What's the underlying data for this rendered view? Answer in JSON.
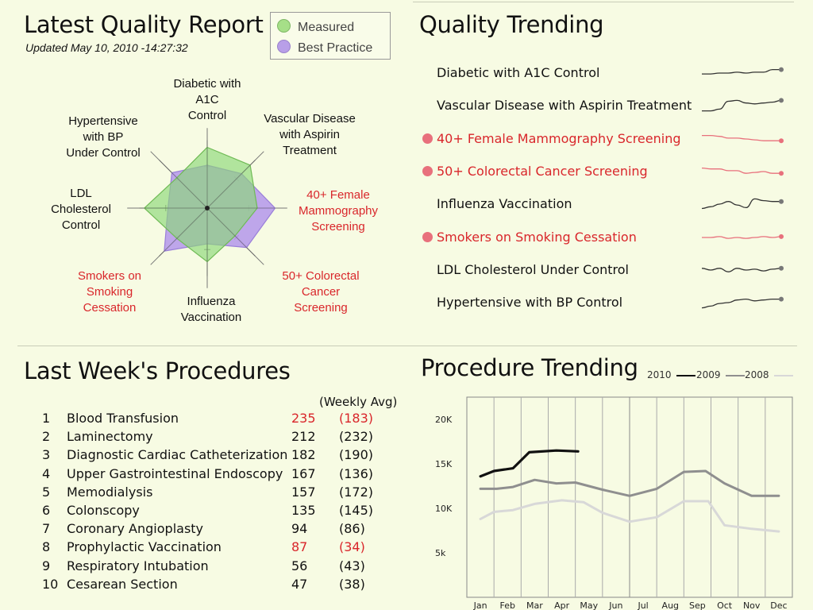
{
  "report": {
    "title": "Latest Quality Report",
    "updated": "Updated May 10, 2010 -14:27:32",
    "legend": [
      {
        "label": "Measured",
        "color": "#a6df88"
      },
      {
        "label": "Best Practice",
        "color": "#b89fe8"
      }
    ]
  },
  "radar": {
    "axes": [
      {
        "lines": [
          "Diabetic with",
          "A1C",
          "Control"
        ],
        "highlight": false
      },
      {
        "lines": [
          "Vascular Disease",
          "with Aspirin",
          "Treatment"
        ],
        "highlight": false
      },
      {
        "lines": [
          "40+ Female",
          "Mammography",
          "Screening"
        ],
        "highlight": true
      },
      {
        "lines": [
          "50+ Colorectal",
          "Cancer",
          "Screening"
        ],
        "highlight": true
      },
      {
        "lines": [
          "Influenza",
          "Vaccination"
        ],
        "highlight": false
      },
      {
        "lines": [
          "Smokers on",
          "Smoking",
          "Cessation"
        ],
        "highlight": true
      },
      {
        "lines": [
          "LDL",
          "Cholesterol",
          "Control"
        ],
        "highlight": false
      },
      {
        "lines": [
          "Hypertensive",
          "with BP",
          "Under Control"
        ],
        "highlight": false
      }
    ]
  },
  "chart_data": [
    {
      "type": "radar",
      "axes": [
        "Diabetic with A1C Control",
        "Vascular Disease with Aspirin Treatment",
        "40+ Female Mammography Screening",
        "50+ Colorectal Cancer Screening",
        "Influenza Vaccination",
        "Smokers on Smoking Cessation",
        "LDL Cholesterol Control",
        "Hypertensive with BP Under Control"
      ],
      "range": [
        0,
        1
      ],
      "series": [
        {
          "name": "Measured",
          "color": "#a6df88",
          "values": [
            0.85,
            0.85,
            0.7,
            0.55,
            0.75,
            0.6,
            0.88,
            0.6
          ]
        },
        {
          "name": "Best Practice",
          "color": "#b89fe8",
          "values": [
            0.6,
            0.68,
            0.95,
            0.78,
            0.5,
            0.85,
            0.55,
            0.7
          ]
        }
      ]
    },
    {
      "type": "line",
      "title": "Procedure Trending",
      "categories": [
        "Jan",
        "Feb",
        "Mar",
        "Apr",
        "May",
        "Jun",
        "Jul",
        "Aug",
        "Sep",
        "Oct",
        "Nov",
        "Dec"
      ],
      "yticks": [
        "20K",
        "15K",
        "10K",
        "5k"
      ],
      "ytick_values": [
        20000,
        15000,
        10000,
        5000
      ],
      "ylim": [
        0,
        22500
      ],
      "grid": true,
      "legend_position": "top-right",
      "series": [
        {
          "name": "2010",
          "color": "#111111",
          "x": [
            0,
            0.5,
            1.2,
            1.8,
            2.8,
            3.6
          ],
          "values": [
            13600,
            14200,
            14500,
            16300,
            16500,
            16400
          ]
        },
        {
          "name": "2009",
          "color": "#8f8f8f",
          "x": [
            0,
            0.6,
            1.2,
            2,
            2.8,
            3.5,
            4.5,
            5.5,
            6.5,
            7.5,
            8.3,
            9,
            10,
            11
          ],
          "values": [
            12200,
            12200,
            12400,
            13200,
            12800,
            12900,
            12100,
            11400,
            12200,
            14100,
            14200,
            12800,
            11400,
            11400
          ]
        },
        {
          "name": "2008",
          "color": "#d8d8d8",
          "x": [
            0,
            0.5,
            1.2,
            2,
            3,
            3.8,
            4.5,
            5.5,
            6.5,
            7.5,
            8.4,
            9,
            10,
            11
          ],
          "values": [
            8800,
            9600,
            9800,
            10500,
            10900,
            10700,
            9500,
            8500,
            9000,
            10800,
            10800,
            8100,
            7700,
            7400
          ]
        }
      ]
    }
  ],
  "trending": {
    "title": "Quality Trending",
    "items": [
      {
        "label": "Diabetic with A1C Control",
        "alert": false,
        "spark": [
          0.55,
          0.55,
          0.5,
          0.5,
          0.45,
          0.5,
          0.45,
          0.45,
          0.3,
          0.3
        ],
        "color": "#333333"
      },
      {
        "label": "Vascular Disease with Aspirin Treatment",
        "alert": false,
        "spark": [
          0.8,
          0.8,
          0.7,
          0.25,
          0.2,
          0.35,
          0.4,
          0.35,
          0.3,
          0.2
        ],
        "color": "#333333"
      },
      {
        "label": "40+ Female Mammography Screening",
        "alert": true,
        "spark": [
          0.3,
          0.3,
          0.35,
          0.45,
          0.45,
          0.5,
          0.55,
          0.6,
          0.6,
          0.6
        ],
        "color": "#e8707c"
      },
      {
        "label": "50+ Colorectal Cancer Screening",
        "alert": true,
        "spark": [
          0.3,
          0.35,
          0.35,
          0.45,
          0.45,
          0.6,
          0.55,
          0.5,
          0.6,
          0.6
        ],
        "color": "#e8707c"
      },
      {
        "label": "Influenza Vaccination",
        "alert": false,
        "spark": [
          0.75,
          0.65,
          0.5,
          0.35,
          0.55,
          0.7,
          0.2,
          0.3,
          0.35,
          0.35
        ],
        "color": "#333333"
      },
      {
        "label": "Smokers on Smoking Cessation",
        "alert": true,
        "spark": [
          0.5,
          0.5,
          0.45,
          0.55,
          0.5,
          0.55,
          0.5,
          0.45,
          0.5,
          0.45
        ],
        "color": "#e8707c"
      },
      {
        "label": "LDL Cholesterol Under Control",
        "alert": false,
        "spark": [
          0.4,
          0.5,
          0.4,
          0.6,
          0.4,
          0.5,
          0.45,
          0.55,
          0.45,
          0.4
        ],
        "color": "#333333"
      },
      {
        "label": "Hypertensive with BP Control",
        "alert": false,
        "spark": [
          0.8,
          0.7,
          0.55,
          0.5,
          0.35,
          0.3,
          0.4,
          0.35,
          0.3,
          0.3
        ],
        "color": "#333333"
      }
    ]
  },
  "procedures": {
    "title": "Last Week's Procedures",
    "avg_header": "(Weekly Avg)",
    "rows": [
      {
        "num": "1",
        "name": "Blood Transfusion",
        "count": "235",
        "avg": "(183)",
        "alert": true
      },
      {
        "num": "2",
        "name": "Laminectomy",
        "count": "212",
        "avg": "(232)",
        "alert": false
      },
      {
        "num": "3",
        "name": "Diagnostic Cardiac Catheterization",
        "count": "182",
        "avg": "(190)",
        "alert": false
      },
      {
        "num": "4",
        "name": "Upper Gastrointestinal Endoscopy",
        "count": "167",
        "avg": "(136)",
        "alert": false
      },
      {
        "num": "5",
        "name": "Memodialysis",
        "count": "157",
        "avg": "(172)",
        "alert": false
      },
      {
        "num": "6",
        "name": "Colonscopy",
        "count": "135",
        "avg": "(145)",
        "alert": false
      },
      {
        "num": "7",
        "name": "Coronary Angioplasty",
        "count": "94",
        "avg": "(86)",
        "alert": false
      },
      {
        "num": "8",
        "name": "Prophylactic Vaccination",
        "count": "87",
        "avg": "(34)",
        "alert": true
      },
      {
        "num": "9",
        "name": "Respiratory Intubation",
        "count": "56",
        "avg": "(43)",
        "alert": false
      },
      {
        "num": "10",
        "name": "Cesarean Section",
        "count": "47",
        "avg": "(38)",
        "alert": false
      }
    ]
  },
  "procedure_trending": {
    "title": "Procedure Trending",
    "legend": [
      {
        "label": "2010",
        "color": "#111111"
      },
      {
        "label": "2009",
        "color": "#8f8f8f"
      },
      {
        "label": "2008",
        "color": "#d8d8d8"
      }
    ]
  },
  "colors": {
    "alert": "#d9262b",
    "alert_dot": "#e8707c",
    "background": "#f7fbe3"
  }
}
